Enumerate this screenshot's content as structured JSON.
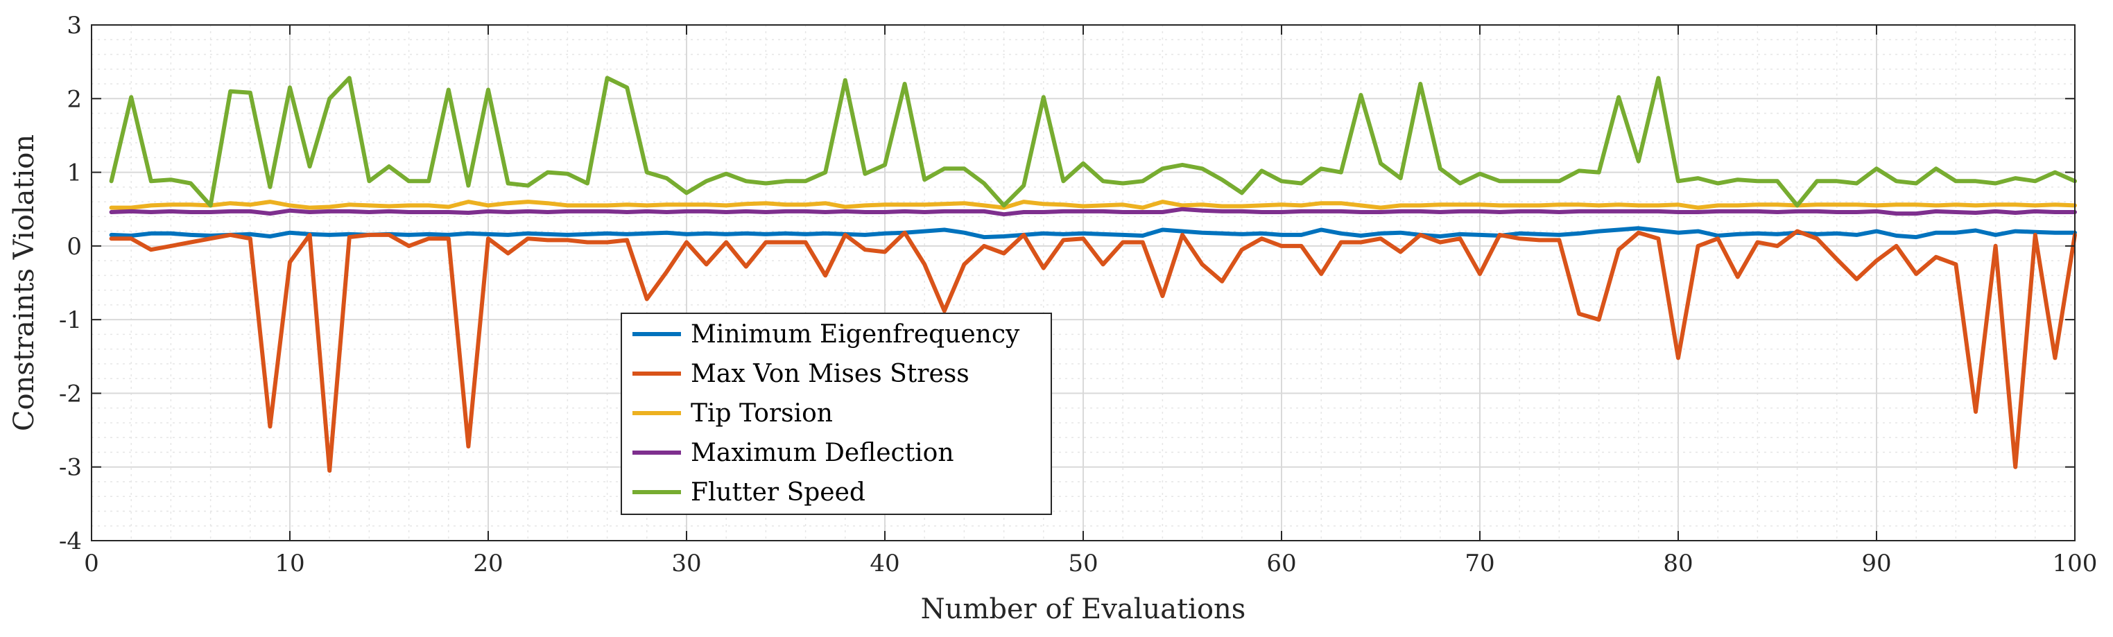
{
  "chart_data": {
    "type": "line",
    "title": "",
    "xlabel": "Number of Evaluations",
    "ylabel": "Constraints Violation",
    "xlim": [
      0,
      100
    ],
    "ylim": [
      -4,
      3
    ],
    "xticks": [
      0,
      10,
      20,
      30,
      40,
      50,
      60,
      70,
      80,
      90,
      100
    ],
    "yticks": [
      -4,
      -3,
      -2,
      -1,
      0,
      1,
      2,
      3
    ],
    "grid": true,
    "minor_grid": true,
    "legend_position": "lower-left-center",
    "x": [
      1,
      2,
      3,
      4,
      5,
      6,
      7,
      8,
      9,
      10,
      11,
      12,
      13,
      14,
      15,
      16,
      17,
      18,
      19,
      20,
      21,
      22,
      23,
      24,
      25,
      26,
      27,
      28,
      29,
      30,
      31,
      32,
      33,
      34,
      35,
      36,
      37,
      38,
      39,
      40,
      41,
      42,
      43,
      44,
      45,
      46,
      47,
      48,
      49,
      50,
      51,
      52,
      53,
      54,
      55,
      56,
      57,
      58,
      59,
      60,
      61,
      62,
      63,
      64,
      65,
      66,
      67,
      68,
      69,
      70,
      71,
      72,
      73,
      74,
      75,
      76,
      77,
      78,
      79,
      80,
      81,
      82,
      83,
      84,
      85,
      86,
      87,
      88,
      89,
      90,
      91,
      92,
      93,
      94,
      95,
      96,
      97,
      98,
      99,
      100
    ],
    "series": [
      {
        "name": "Minimum Eigenfrequency",
        "color": "#0072BD",
        "values": [
          0.15,
          0.14,
          0.17,
          0.17,
          0.15,
          0.14,
          0.15,
          0.16,
          0.13,
          0.18,
          0.16,
          0.15,
          0.16,
          0.15,
          0.16,
          0.15,
          0.16,
          0.15,
          0.17,
          0.16,
          0.15,
          0.17,
          0.16,
          0.15,
          0.16,
          0.17,
          0.16,
          0.17,
          0.18,
          0.16,
          0.17,
          0.16,
          0.17,
          0.16,
          0.17,
          0.16,
          0.17,
          0.16,
          0.15,
          0.17,
          0.18,
          0.2,
          0.22,
          0.18,
          0.12,
          0.13,
          0.15,
          0.17,
          0.16,
          0.17,
          0.16,
          0.15,
          0.14,
          0.22,
          0.2,
          0.18,
          0.17,
          0.16,
          0.17,
          0.15,
          0.15,
          0.22,
          0.17,
          0.14,
          0.17,
          0.18,
          0.15,
          0.13,
          0.16,
          0.15,
          0.14,
          0.17,
          0.16,
          0.15,
          0.17,
          0.2,
          0.22,
          0.24,
          0.21,
          0.18,
          0.2,
          0.14,
          0.16,
          0.17,
          0.16,
          0.18,
          0.16,
          0.17,
          0.15,
          0.2,
          0.14,
          0.12,
          0.18,
          0.18,
          0.21,
          0.15,
          0.2,
          0.19,
          0.18,
          0.18
        ]
      },
      {
        "name": "Max Von Mises Stress",
        "color": "#D95319",
        "values": [
          0.1,
          0.1,
          -0.05,
          0.0,
          0.05,
          0.1,
          0.15,
          0.1,
          -2.45,
          -0.22,
          0.15,
          -3.05,
          0.12,
          0.15,
          0.15,
          0.0,
          0.1,
          0.1,
          -2.72,
          0.1,
          -0.1,
          0.1,
          0.08,
          0.08,
          0.05,
          0.05,
          0.08,
          -0.72,
          -0.35,
          0.05,
          -0.25,
          0.05,
          -0.28,
          0.05,
          0.05,
          0.05,
          -0.4,
          0.15,
          -0.05,
          -0.08,
          0.18,
          -0.25,
          -0.88,
          -0.25,
          0.0,
          -0.1,
          0.15,
          -0.3,
          0.08,
          0.1,
          -0.25,
          0.05,
          0.05,
          -0.68,
          0.15,
          -0.25,
          -0.48,
          -0.05,
          0.1,
          0.0,
          0.0,
          -0.38,
          0.05,
          0.05,
          0.1,
          -0.08,
          0.15,
          0.05,
          0.1,
          -0.38,
          0.15,
          0.1,
          0.08,
          0.08,
          -0.92,
          -1.0,
          -0.05,
          0.18,
          0.1,
          -1.52,
          0.0,
          0.1,
          -0.42,
          0.05,
          0.0,
          0.2,
          0.1,
          -0.18,
          -0.45,
          -0.2,
          0.0,
          -0.38,
          -0.15,
          -0.25,
          -2.25,
          0.0,
          -3.0,
          0.15,
          -1.52,
          0.15
        ]
      },
      {
        "name": "Tip Torsion",
        "color": "#EDB120",
        "values": [
          0.52,
          0.52,
          0.55,
          0.56,
          0.56,
          0.55,
          0.58,
          0.56,
          0.6,
          0.55,
          0.52,
          0.53,
          0.56,
          0.55,
          0.54,
          0.55,
          0.55,
          0.53,
          0.6,
          0.55,
          0.58,
          0.6,
          0.58,
          0.55,
          0.55,
          0.55,
          0.56,
          0.55,
          0.56,
          0.56,
          0.56,
          0.55,
          0.57,
          0.58,
          0.56,
          0.56,
          0.58,
          0.53,
          0.55,
          0.56,
          0.56,
          0.56,
          0.57,
          0.58,
          0.55,
          0.52,
          0.6,
          0.57,
          0.56,
          0.54,
          0.55,
          0.56,
          0.52,
          0.6,
          0.55,
          0.56,
          0.54,
          0.54,
          0.55,
          0.56,
          0.55,
          0.58,
          0.58,
          0.55,
          0.52,
          0.55,
          0.55,
          0.56,
          0.56,
          0.56,
          0.55,
          0.55,
          0.55,
          0.56,
          0.56,
          0.55,
          0.56,
          0.55,
          0.55,
          0.56,
          0.52,
          0.55,
          0.55,
          0.56,
          0.56,
          0.55,
          0.56,
          0.56,
          0.56,
          0.55,
          0.56,
          0.56,
          0.55,
          0.56,
          0.55,
          0.56,
          0.56,
          0.55,
          0.56,
          0.55
        ]
      },
      {
        "name": "Maximum Deflection",
        "color": "#7E2F8E",
        "values": [
          0.46,
          0.47,
          0.46,
          0.47,
          0.46,
          0.46,
          0.47,
          0.47,
          0.44,
          0.48,
          0.46,
          0.47,
          0.47,
          0.46,
          0.47,
          0.46,
          0.46,
          0.46,
          0.45,
          0.47,
          0.46,
          0.47,
          0.46,
          0.47,
          0.47,
          0.47,
          0.46,
          0.47,
          0.46,
          0.47,
          0.47,
          0.46,
          0.47,
          0.46,
          0.47,
          0.47,
          0.46,
          0.47,
          0.46,
          0.46,
          0.47,
          0.46,
          0.47,
          0.47,
          0.47,
          0.43,
          0.46,
          0.46,
          0.47,
          0.47,
          0.47,
          0.46,
          0.46,
          0.46,
          0.5,
          0.48,
          0.47,
          0.47,
          0.46,
          0.46,
          0.47,
          0.47,
          0.47,
          0.46,
          0.46,
          0.47,
          0.47,
          0.46,
          0.47,
          0.47,
          0.46,
          0.47,
          0.47,
          0.46,
          0.47,
          0.47,
          0.47,
          0.47,
          0.47,
          0.46,
          0.46,
          0.47,
          0.47,
          0.47,
          0.46,
          0.47,
          0.47,
          0.46,
          0.46,
          0.47,
          0.44,
          0.44,
          0.47,
          0.46,
          0.45,
          0.47,
          0.45,
          0.47,
          0.46,
          0.46
        ]
      },
      {
        "name": "Flutter Speed",
        "color": "#77AC30",
        "values": [
          0.88,
          2.02,
          0.88,
          0.9,
          0.85,
          0.55,
          2.1,
          2.08,
          0.8,
          2.15,
          1.08,
          2.0,
          2.28,
          0.88,
          1.08,
          0.88,
          0.88,
          2.12,
          0.82,
          2.12,
          0.85,
          0.82,
          1.0,
          0.98,
          0.85,
          2.28,
          2.15,
          1.0,
          0.92,
          0.72,
          0.88,
          0.98,
          0.88,
          0.85,
          0.88,
          0.88,
          1.0,
          2.25,
          0.98,
          1.1,
          2.2,
          0.9,
          1.05,
          1.05,
          0.85,
          0.55,
          0.82,
          2.02,
          0.88,
          1.12,
          0.88,
          0.85,
          0.88,
          1.05,
          1.1,
          1.05,
          0.9,
          0.72,
          1.02,
          0.88,
          0.85,
          1.05,
          1.0,
          2.05,
          1.12,
          0.92,
          2.2,
          1.05,
          0.85,
          0.98,
          0.88,
          0.88,
          0.88,
          0.88,
          1.02,
          1.0,
          2.02,
          1.15,
          2.28,
          0.88,
          0.92,
          0.85,
          0.9,
          0.88,
          0.88,
          0.55,
          0.88,
          0.88,
          0.85,
          1.05,
          0.88,
          0.85,
          1.05,
          0.88,
          0.88,
          0.85,
          0.92,
          0.88,
          1.0,
          0.88
        ]
      }
    ]
  }
}
